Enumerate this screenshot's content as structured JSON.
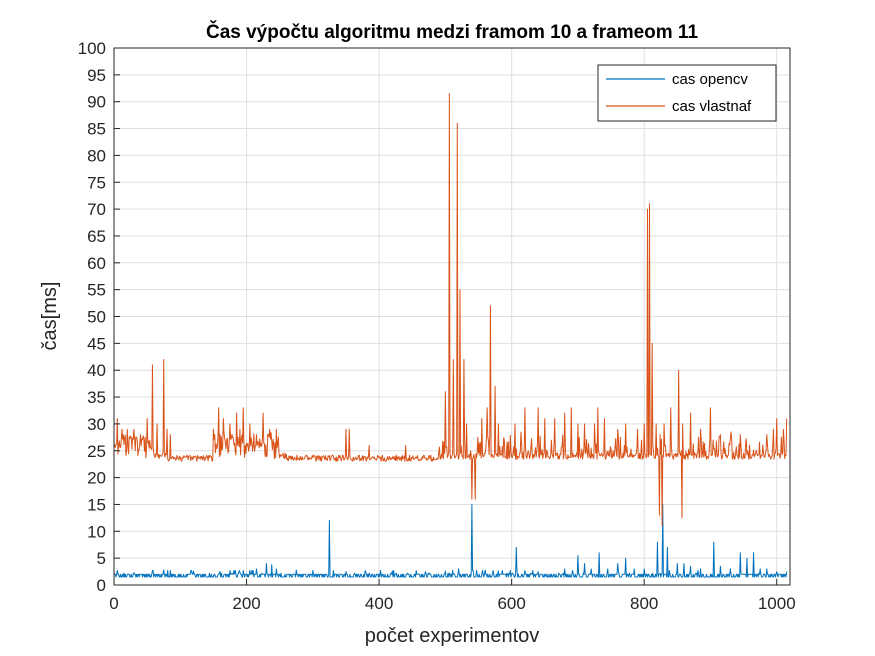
{
  "chart_data": {
    "type": "line",
    "title": "Čas výpočtu algoritmu medzi framom 10 a frameom 11",
    "xlabel": "počet experimentov",
    "ylabel": "čas[ms]",
    "xlim": [
      0,
      1020
    ],
    "ylim": [
      0,
      100
    ],
    "xticks": [
      0,
      200,
      400,
      600,
      800,
      1000
    ],
    "yticks": [
      0,
      5,
      10,
      15,
      20,
      25,
      30,
      35,
      40,
      45,
      50,
      55,
      60,
      65,
      70,
      75,
      80,
      85,
      90,
      95,
      100
    ],
    "grid": true,
    "legend_position": "top-right",
    "series": [
      {
        "name": "cas opencv",
        "color": "#0072BD",
        "baseline": 2,
        "spikes": [
          [
            5,
            2.7
          ],
          [
            30,
            2.3
          ],
          [
            75,
            2.8
          ],
          [
            120,
            2.6
          ],
          [
            160,
            2.5
          ],
          [
            190,
            2.4
          ],
          [
            215,
            3
          ],
          [
            230,
            4
          ],
          [
            238,
            3.8
          ],
          [
            245,
            3
          ],
          [
            275,
            2.8
          ],
          [
            325,
            12
          ],
          [
            350,
            2.5
          ],
          [
            380,
            2.4
          ],
          [
            420,
            2.6
          ],
          [
            470,
            2.5
          ],
          [
            500,
            2.6
          ],
          [
            520,
            3
          ],
          [
            540,
            15
          ],
          [
            560,
            2.8
          ],
          [
            580,
            2.6
          ],
          [
            607,
            7
          ],
          [
            640,
            2.5
          ],
          [
            680,
            3
          ],
          [
            700,
            5.5
          ],
          [
            710,
            4
          ],
          [
            720,
            3
          ],
          [
            732,
            6
          ],
          [
            745,
            3
          ],
          [
            760,
            4
          ],
          [
            772,
            5
          ],
          [
            785,
            3
          ],
          [
            800,
            3
          ],
          [
            820,
            8
          ],
          [
            828,
            15
          ],
          [
            835,
            7
          ],
          [
            850,
            4
          ],
          [
            860,
            4
          ],
          [
            870,
            3.5
          ],
          [
            885,
            3
          ],
          [
            905,
            8
          ],
          [
            915,
            3.5
          ],
          [
            930,
            3
          ],
          [
            945,
            6
          ],
          [
            955,
            5
          ],
          [
            965,
            6
          ],
          [
            975,
            3
          ],
          [
            985,
            3
          ],
          [
            1000,
            2.5
          ],
          [
            1015,
            2.5
          ]
        ]
      },
      {
        "name": "cas vlastnaf",
        "color": "#D95319",
        "baseline": 24,
        "spikes": [
          [
            5,
            31
          ],
          [
            12,
            29
          ],
          [
            20,
            29
          ],
          [
            30,
            29
          ],
          [
            40,
            28
          ],
          [
            50,
            31
          ],
          [
            58,
            41
          ],
          [
            65,
            30
          ],
          [
            75,
            42
          ],
          [
            80,
            29
          ],
          [
            85,
            28
          ],
          [
            150,
            29
          ],
          [
            158,
            33
          ],
          [
            165,
            31
          ],
          [
            175,
            30
          ],
          [
            185,
            32
          ],
          [
            190,
            29
          ],
          [
            195,
            33
          ],
          [
            205,
            30
          ],
          [
            215,
            28
          ],
          [
            225,
            32
          ],
          [
            235,
            29
          ],
          [
            245,
            29
          ],
          [
            350,
            29
          ],
          [
            355,
            29
          ],
          [
            385,
            26
          ],
          [
            440,
            26
          ],
          [
            500,
            36
          ],
          [
            506,
            91.5
          ],
          [
            512,
            42
          ],
          [
            518,
            86
          ],
          [
            522,
            55
          ],
          [
            528,
            42
          ],
          [
            532,
            30
          ],
          [
            540,
            32
          ],
          [
            545,
            30
          ],
          [
            555,
            31
          ],
          [
            563,
            33
          ],
          [
            568,
            52
          ],
          [
            575,
            37
          ],
          [
            580,
            30
          ],
          [
            605,
            30
          ],
          [
            620,
            33
          ],
          [
            640,
            33
          ],
          [
            650,
            31
          ],
          [
            665,
            31
          ],
          [
            680,
            32
          ],
          [
            690,
            33
          ],
          [
            700,
            30
          ],
          [
            710,
            30
          ],
          [
            725,
            30
          ],
          [
            730,
            33
          ],
          [
            740,
            31
          ],
          [
            760,
            29
          ],
          [
            772,
            30
          ],
          [
            790,
            29
          ],
          [
            800,
            30
          ],
          [
            805,
            70
          ],
          [
            808,
            71
          ],
          [
            812,
            45
          ],
          [
            818,
            30
          ],
          [
            830,
            30
          ],
          [
            840,
            33
          ],
          [
            852,
            40
          ],
          [
            858,
            30
          ],
          [
            870,
            32
          ],
          [
            885,
            29
          ],
          [
            900,
            33
          ],
          [
            915,
            28
          ],
          [
            945,
            28
          ],
          [
            985,
            28
          ],
          [
            995,
            29
          ],
          [
            1000,
            31
          ],
          [
            1010,
            29
          ],
          [
            1015,
            31
          ]
        ],
        "dips": [
          [
            540,
            16
          ],
          [
            545,
            16
          ],
          [
            823,
            13
          ],
          [
            827,
            11
          ],
          [
            857,
            12.5
          ]
        ]
      }
    ]
  }
}
